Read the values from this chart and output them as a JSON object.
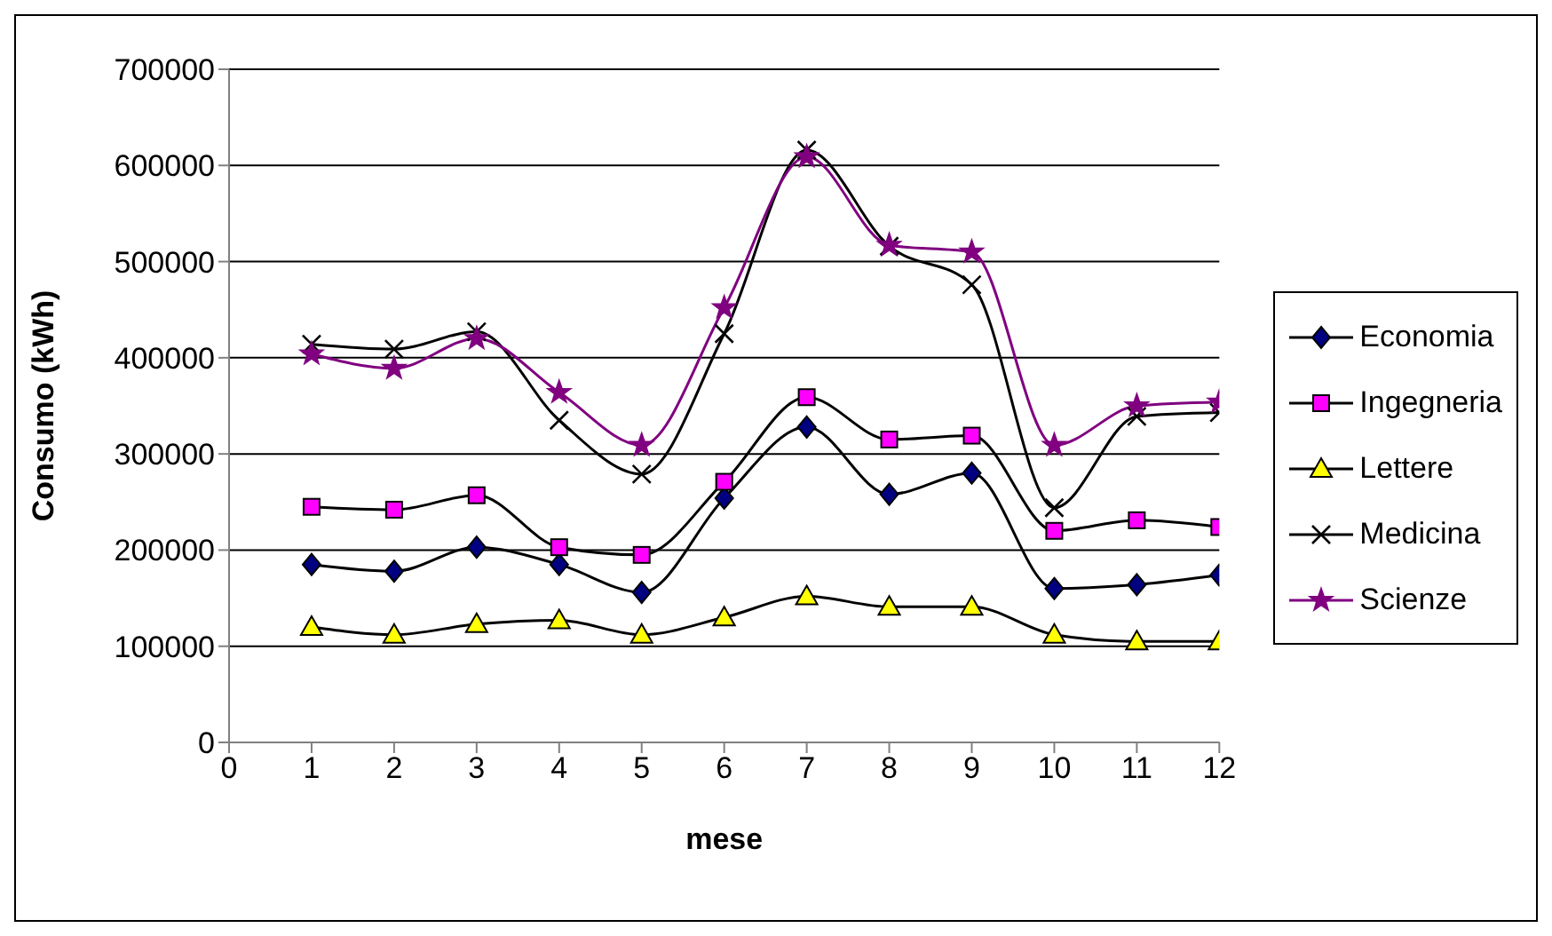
{
  "chart_data": {
    "type": "line",
    "xlabel": "mese",
    "ylabel": "Consumo (kWh)",
    "x": [
      1,
      2,
      3,
      4,
      5,
      6,
      7,
      8,
      9,
      10,
      11,
      12
    ],
    "xlim": [
      0,
      12
    ],
    "xticks": [
      0,
      1,
      2,
      3,
      4,
      5,
      6,
      7,
      8,
      9,
      10,
      11,
      12
    ],
    "ylim": [
      0,
      700000
    ],
    "yticks": [
      0,
      100000,
      200000,
      300000,
      400000,
      500000,
      600000,
      700000
    ],
    "grid": "y",
    "legend": "right",
    "series": [
      {
        "name": "Economia",
        "color": "#000080",
        "marker": "diamond",
        "values": [
          185000,
          178000,
          203000,
          185000,
          156000,
          254000,
          328000,
          258000,
          280000,
          160000,
          164000,
          174000
        ]
      },
      {
        "name": "Ingegneria",
        "color": "#ff00ff",
        "marker": "square",
        "values": [
          245000,
          242000,
          257000,
          203000,
          195000,
          271000,
          359000,
          315000,
          319000,
          220000,
          231000,
          224000
        ]
      },
      {
        "name": "Lettere",
        "color": "#ffff00",
        "marker": "triangle",
        "values": [
          120000,
          112000,
          123000,
          127000,
          112000,
          130000,
          152000,
          141000,
          141000,
          112000,
          105000,
          105000
        ]
      },
      {
        "name": "Medicina",
        "color": "#000000",
        "marker": "cross",
        "values": [
          414000,
          409000,
          427000,
          335000,
          279000,
          425000,
          616000,
          516000,
          476000,
          244000,
          339000,
          343000
        ]
      },
      {
        "name": "Scienze",
        "color": "#800080",
        "marker": "star",
        "values": [
          404000,
          389000,
          420000,
          364000,
          309000,
          452000,
          609000,
          517000,
          510000,
          309000,
          350000,
          354000
        ]
      }
    ]
  }
}
